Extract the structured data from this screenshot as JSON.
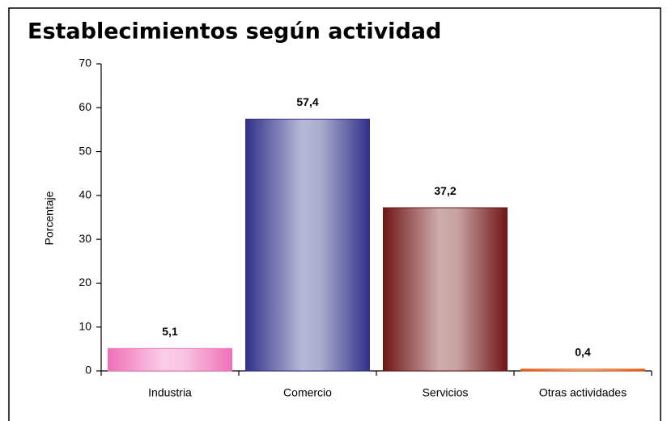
{
  "chart_data": {
    "type": "bar",
    "title": "Establecimientos según actividad",
    "y_label": "Porcentaje",
    "categories": [
      "Industria",
      "Comercio",
      "Servicios",
      "Otras actividades"
    ],
    "values": [
      5.1,
      57.4,
      37.2,
      0.4
    ],
    "value_labels": [
      "5,1",
      "57,4",
      "37,2",
      "0,4"
    ],
    "colors": [
      "#f070b8",
      "#30308a",
      "#701515",
      "#e05a10"
    ],
    "ylim": [
      0,
      70
    ],
    "yticks": [
      0,
      10,
      20,
      30,
      40,
      50,
      60,
      70
    ],
    "grid": false
  }
}
